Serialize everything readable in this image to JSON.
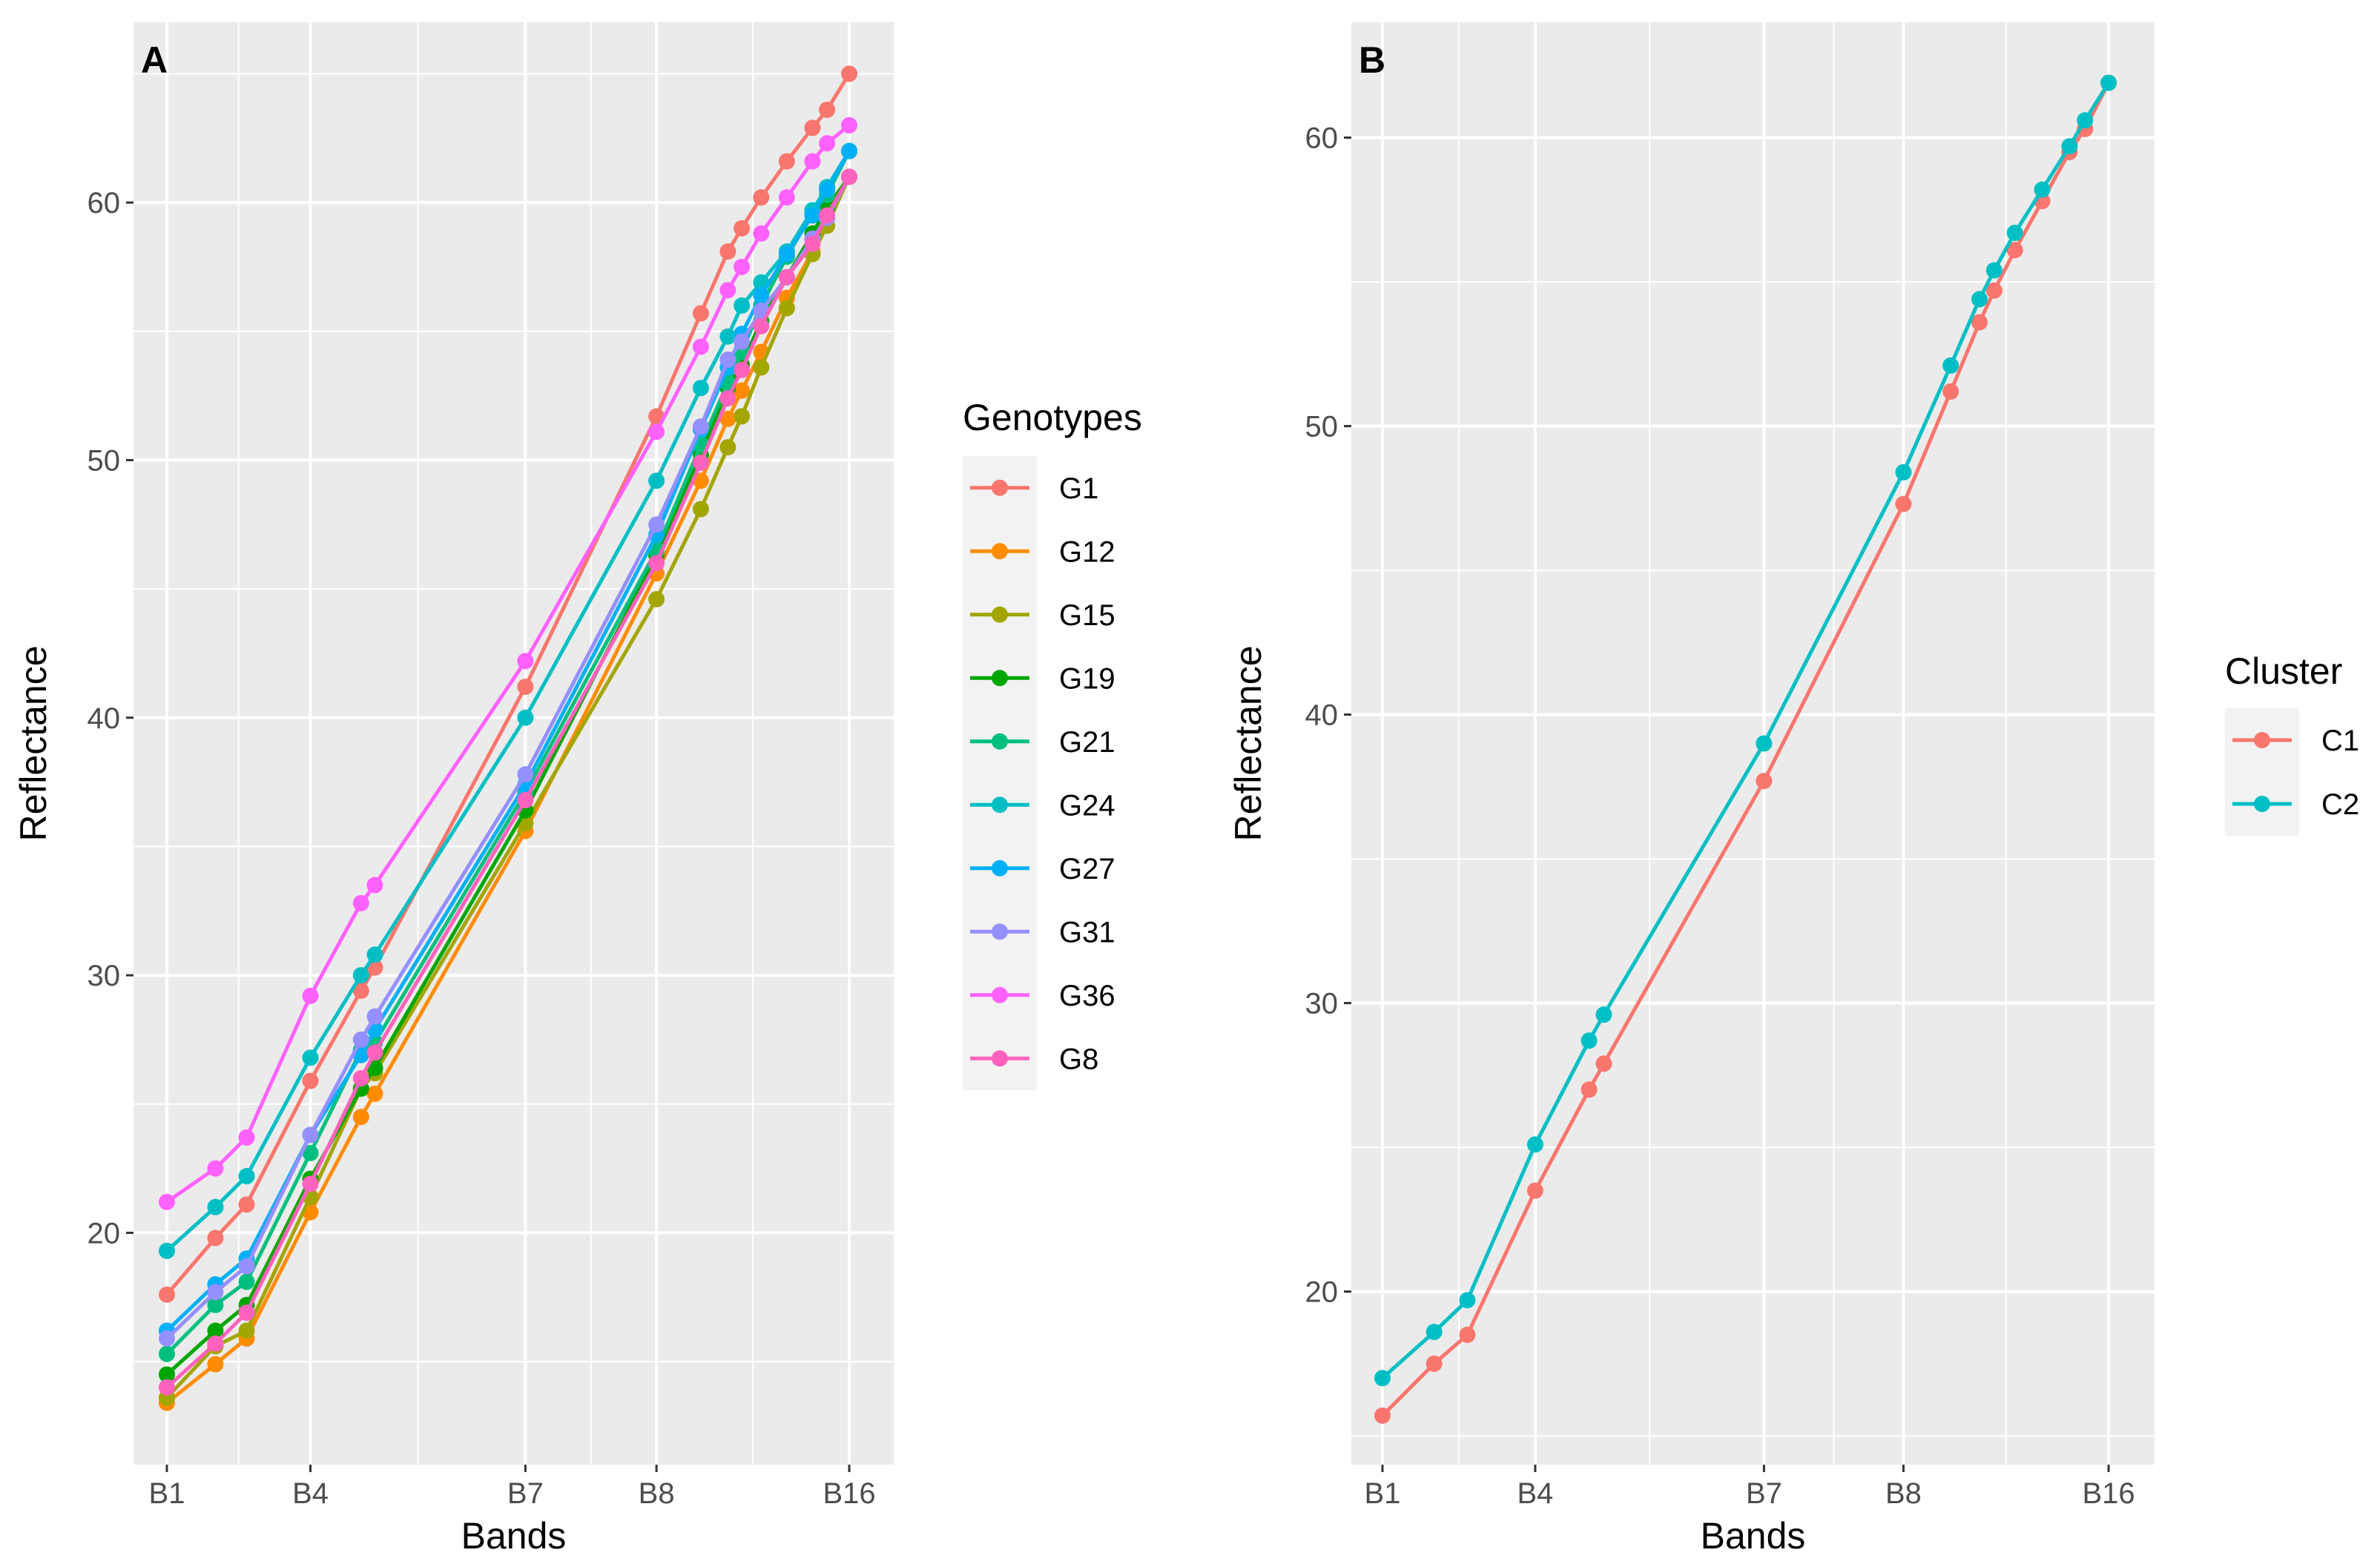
{
  "chart_data": [
    {
      "type": "line",
      "panel_label": "A",
      "xlabel": "Bands",
      "ylabel": "Reflectance",
      "x_ticks": [
        "B1",
        "B4",
        "B7",
        "B8",
        "B16"
      ],
      "y_ticks": [
        "20",
        "30",
        "40",
        "50",
        "60"
      ],
      "ylim": [
        11,
        67
      ],
      "grid": true,
      "legend_title": "Genotypes",
      "legend_position": "right",
      "series": [
        {
          "name": "G1",
          "color": "#F8766D",
          "values": [
            17.6,
            19.8,
            21.1,
            25.9,
            29.4,
            30.3,
            41.2,
            51.7,
            55.7,
            58.1,
            59.0,
            60.2,
            61.6,
            62.9,
            63.6,
            65.0
          ]
        },
        {
          "name": "G12",
          "color": "#FF8C00",
          "values": [
            13.4,
            14.9,
            15.9,
            20.8,
            24.5,
            25.4,
            35.6,
            45.6,
            49.2,
            51.6,
            52.7,
            54.2,
            56.3,
            58.1,
            59.4,
            61.0
          ]
        },
        {
          "name": "G15",
          "color": "#A3A500",
          "values": [
            13.6,
            15.6,
            16.2,
            21.4,
            25.6,
            26.2,
            35.9,
            44.6,
            48.1,
            50.5,
            51.7,
            53.6,
            55.9,
            58.0,
            59.1,
            61.0
          ]
        },
        {
          "name": "G19",
          "color": "#00A600",
          "values": [
            14.5,
            16.2,
            17.2,
            22.1,
            25.6,
            26.4,
            36.4,
            46.3,
            50.2,
            52.8,
            53.7,
            55.4,
            57.1,
            58.8,
            59.8,
            61.0
          ]
        },
        {
          "name": "G21",
          "color": "#00BF7D",
          "values": [
            15.3,
            17.2,
            18.1,
            23.1,
            27.1,
            27.4,
            37.1,
            46.5,
            50.6,
            53.0,
            54.2,
            56.0,
            57.9,
            59.6,
            60.3,
            62.0
          ]
        },
        {
          "name": "G24",
          "color": "#00BFC4",
          "values": [
            19.3,
            21.0,
            22.2,
            26.8,
            30.0,
            30.8,
            40.0,
            49.2,
            52.8,
            54.8,
            56.0,
            56.9,
            58.1,
            59.7,
            60.6,
            62.0
          ]
        },
        {
          "name": "G27",
          "color": "#00B0F6",
          "values": [
            16.2,
            18.0,
            19.0,
            23.8,
            26.9,
            27.9,
            37.4,
            47.1,
            51.2,
            53.6,
            54.9,
            56.4,
            58.0,
            59.5,
            60.5,
            62.0
          ]
        },
        {
          "name": "G31",
          "color": "#9590FF",
          "values": [
            15.9,
            17.7,
            18.7,
            23.8,
            27.5,
            28.4,
            37.8,
            47.5,
            51.3,
            53.9,
            54.6,
            55.8,
            57.1,
            58.6,
            59.4,
            61.0
          ]
        },
        {
          "name": "G36",
          "color": "#FF61FF",
          "values": [
            21.2,
            22.5,
            23.7,
            29.2,
            32.8,
            33.5,
            42.2,
            51.1,
            54.4,
            56.6,
            57.5,
            58.8,
            60.2,
            61.6,
            62.3,
            63.0
          ]
        },
        {
          "name": "G8",
          "color": "#FF62BC",
          "values": [
            14.0,
            15.7,
            16.9,
            21.9,
            26.0,
            27.0,
            36.8,
            46.0,
            49.9,
            52.4,
            53.5,
            55.2,
            57.1,
            58.4,
            59.5,
            61.0
          ]
        }
      ]
    },
    {
      "type": "line",
      "panel_label": "B",
      "xlabel": "Bands",
      "ylabel": "Reflectance",
      "x_ticks": [
        "B1",
        "B4",
        "B7",
        "B8",
        "B16"
      ],
      "y_ticks": [
        "20",
        "30",
        "40",
        "50",
        "60"
      ],
      "ylim": [
        14,
        64
      ],
      "grid": true,
      "legend_title": "Cluster",
      "legend_position": "right",
      "series": [
        {
          "name": "C1",
          "color": "#F8766D",
          "values": [
            15.7,
            17.5,
            18.5,
            23.5,
            27.0,
            27.9,
            37.7,
            47.3,
            51.2,
            53.6,
            54.7,
            56.1,
            57.8,
            59.5,
            60.3,
            61.9
          ]
        },
        {
          "name": "C2",
          "color": "#00BFC4",
          "values": [
            17.0,
            18.6,
            19.7,
            25.1,
            28.7,
            29.6,
            39.0,
            48.4,
            52.1,
            54.4,
            55.4,
            56.7,
            58.2,
            59.7,
            60.6,
            61.9
          ]
        }
      ]
    }
  ]
}
